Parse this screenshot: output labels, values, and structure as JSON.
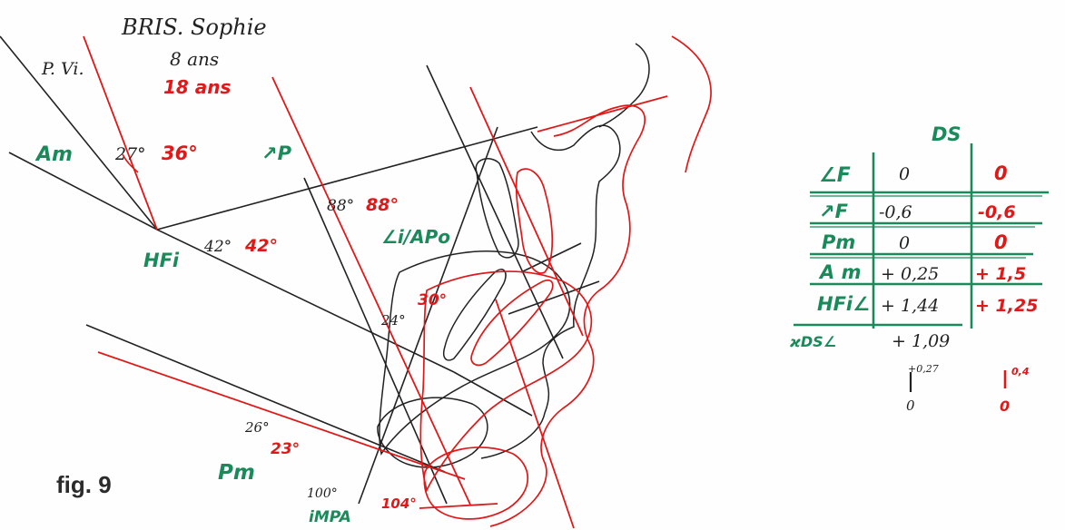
{
  "header": {
    "patient": "BRIS. Sophie",
    "age_1": "8 ans",
    "age_2": "18 ans",
    "plane_label": "P. Vi."
  },
  "angles": {
    "am_label": "Am",
    "am_black": "27°",
    "am_red": "36°",
    "p_label": "↗P",
    "p_black": "88°",
    "p_red": "88°",
    "hfi_label": "HFi",
    "hfi_black": "42°",
    "hfi_red": "42°",
    "iapo_label": "∠i/APo",
    "iapo_black": "24°",
    "iapo_red": "30°",
    "pm_label": "Pm",
    "pm_black": "26°",
    "pm_red": "23°",
    "impa_label": "iMPA",
    "impa_black": "100°",
    "impa_red": "104°"
  },
  "table": {
    "title": "DS",
    "rows": [
      {
        "label": "∠F",
        "black": "0",
        "red": "0"
      },
      {
        "label": "↗F",
        "black": "-0,6",
        "red": "-0,6"
      },
      {
        "label": "Pm",
        "black": "0",
        "red": "0"
      },
      {
        "label": "A m",
        "black": "+ 0,25",
        "red": "+ 1,5"
      },
      {
        "label": "HFi∠",
        "black": "+ 1,44",
        "red": "+ 1,25"
      }
    ],
    "total_label": "ϰDS∠",
    "total_black": "+ 1,09",
    "scale_black_top": "+0,27",
    "scale_black_bottom": "0",
    "scale_red_top": "0,4",
    "scale_red_bottom": "0"
  },
  "caption": "fig. 9",
  "colors": {
    "black": "#222222",
    "red": "#e01818",
    "green": "#1a8a5a"
  }
}
